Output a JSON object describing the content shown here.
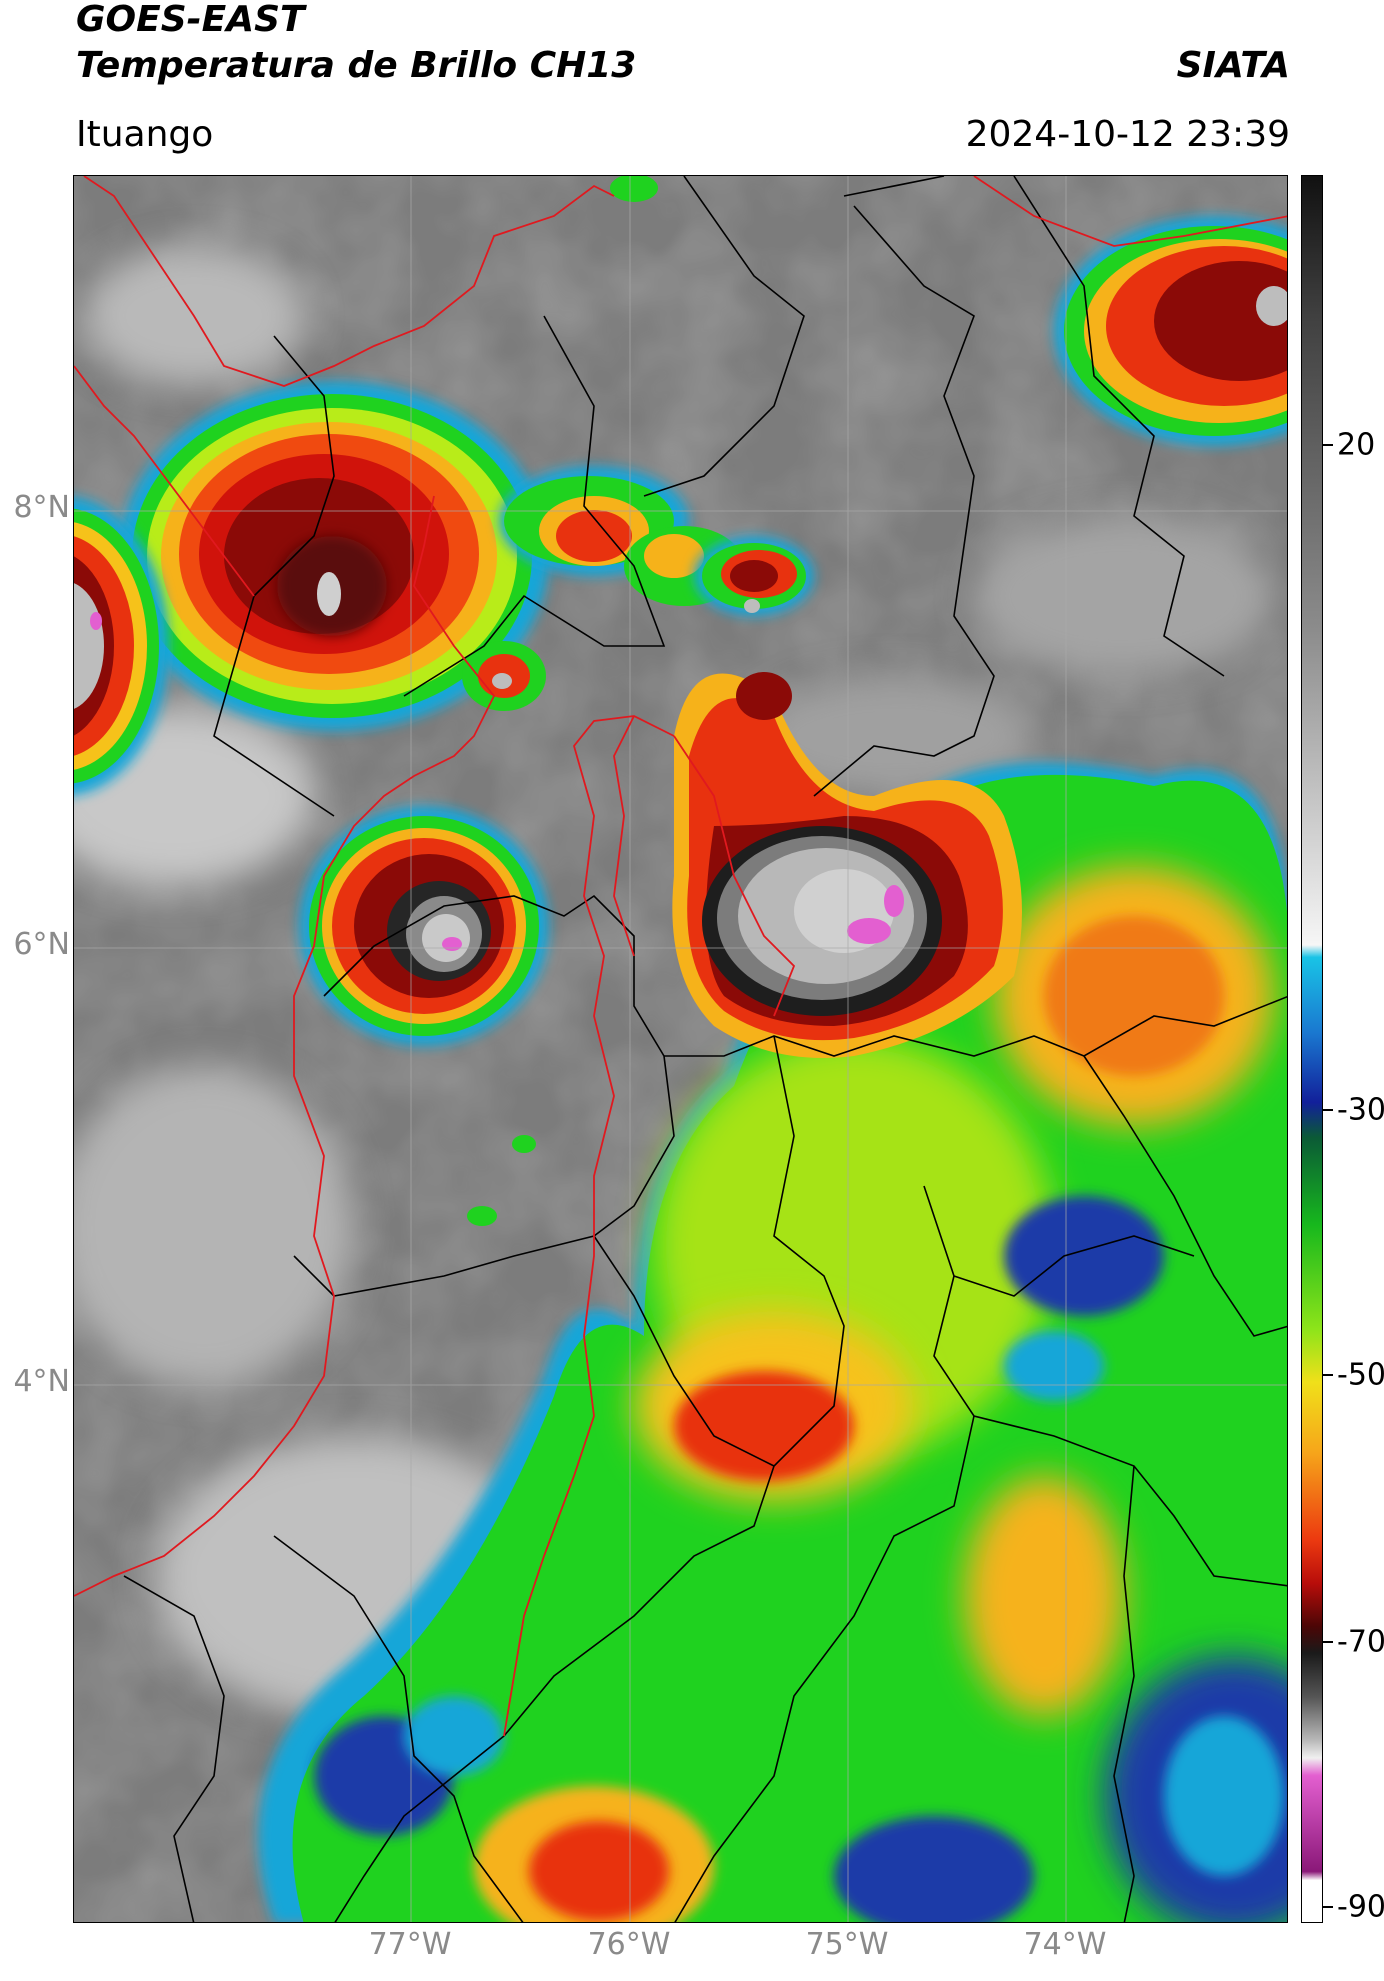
{
  "header": {
    "satellite": "GOES-EAST",
    "product": "Temperatura de Brillo CH13",
    "organization": "SIATA",
    "location": "Ituango",
    "datetime": "2024-10-12 23:39"
  },
  "map": {
    "lat_labels": [
      {
        "label": "8°N",
        "value": 8
      },
      {
        "label": "6°N",
        "value": 6
      },
      {
        "label": "4°N",
        "value": 4
      }
    ],
    "lon_labels": [
      {
        "label": "77°W",
        "value": -77
      },
      {
        "label": "76°W",
        "value": -76
      },
      {
        "label": "75°W",
        "value": -75
      },
      {
        "label": "74°W",
        "value": -74
      }
    ],
    "colors": {
      "background_gray": "#7a7a7a",
      "border_national": "#e0191f",
      "border_regional": "#000000"
    }
  },
  "colorbar": {
    "range": [
      -90,
      40
    ],
    "ticks": [
      {
        "label": "20",
        "value": 20
      },
      {
        "label": "-30",
        "value": -30
      },
      {
        "label": "-50",
        "value": -50
      },
      {
        "label": "-70",
        "value": -70
      },
      {
        "label": "-90",
        "value": -90
      }
    ]
  }
}
